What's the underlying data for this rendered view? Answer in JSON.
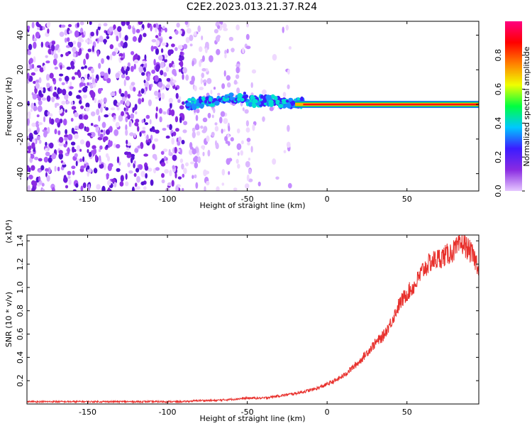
{
  "title": "C2E2.2023.013.21.37.R24",
  "chart_data": [
    {
      "type": "heatmap",
      "xlabel": "Height of straight line (km)",
      "ylabel": "Frequency (Hz)",
      "xlim": [
        -188,
        95
      ],
      "ylim": [
        -50,
        48
      ],
      "xticks": [
        -150,
        -100,
        -50,
        0,
        50
      ],
      "yticks": [
        -40,
        -20,
        0,
        20,
        40
      ],
      "colorbar": {
        "label": "Normalized spectral amplitude",
        "range": [
          0,
          1
        ],
        "ticks": [
          "0.0",
          "0.2",
          "0.4",
          "0.6",
          "0.8"
        ],
        "colors": [
          "#e6c8ff",
          "#8a2be2",
          "#3b1cff",
          "#00c8ff",
          "#00ff40",
          "#f0ff00",
          "#ff8000",
          "#ff0000",
          "#ff0080"
        ]
      },
      "signal_band": {
        "frequency_hz": 0,
        "x_start_km": -88,
        "x_end_km": 95
      }
    },
    {
      "type": "line",
      "xlabel": "Height of straight line (km)",
      "ylabel": "SNR (10 * v/v)",
      "y_multiplier": "(x10⁴)",
      "xlim": [
        -188,
        95
      ],
      "ylim": [
        0,
        1.45
      ],
      "xticks": [
        -150,
        -100,
        -50,
        0,
        50
      ],
      "yticks": [
        "0.2",
        "0.4",
        "0.6",
        "0.8",
        "1.0",
        "1.2",
        "1.4"
      ],
      "line_color": "#e8302c",
      "series": [
        {
          "x": [
            -188,
            -170,
            -150,
            -130,
            -110,
            -90,
            -80,
            -70,
            -60,
            -50,
            -40,
            -30,
            -20,
            -10,
            -5,
            0,
            5,
            10,
            15,
            20,
            25,
            30,
            35,
            40,
            45,
            50,
            55,
            60,
            65,
            70,
            75,
            80,
            85,
            90,
            95
          ],
          "y": [
            0.02,
            0.02,
            0.02,
            0.02,
            0.02,
            0.02,
            0.03,
            0.03,
            0.04,
            0.05,
            0.05,
            0.07,
            0.09,
            0.12,
            0.14,
            0.17,
            0.2,
            0.24,
            0.3,
            0.36,
            0.44,
            0.52,
            0.58,
            0.7,
            0.85,
            0.95,
            1.02,
            1.15,
            1.22,
            1.25,
            1.28,
            1.32,
            1.38,
            1.3,
            1.18
          ]
        }
      ]
    }
  ]
}
